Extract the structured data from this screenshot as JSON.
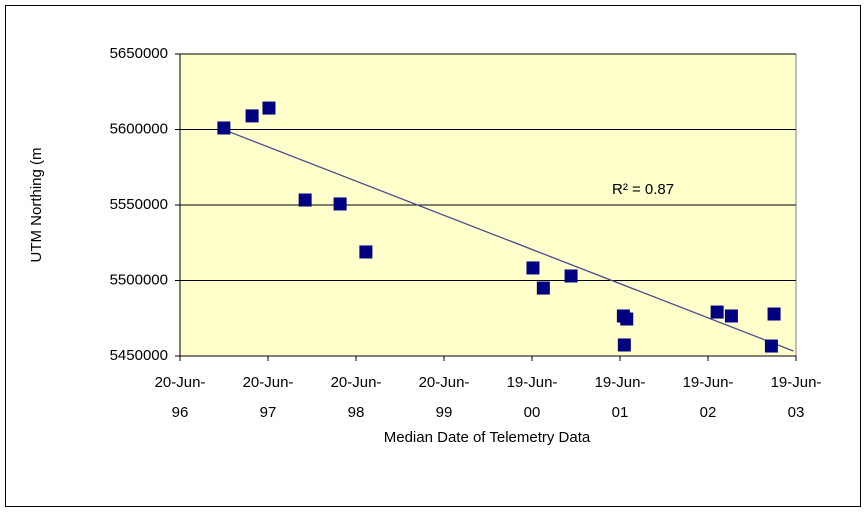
{
  "chart_data": {
    "type": "scatter",
    "x_label": "Median Date of Telemetry Data",
    "y_label": "UTM Northing (m",
    "annotation": "R² = 0.87",
    "marker_color": "#000080",
    "plot_background": "#ffffcc",
    "grid": "y",
    "x": [
      "1996-12-19",
      "1997-04-15",
      "1997-06-24",
      "1997-11-21",
      "1998-04-15",
      "1998-07-31",
      "2000-06-23",
      "2000-08-05",
      "2000-11-28",
      "2001-07-07",
      "2001-07-03",
      "2001-07-17",
      "2002-07-27",
      "2002-09-24",
      "2003-03-09",
      "2003-03-20"
    ],
    "values": [
      5601000,
      5609000,
      5614200,
      5553300,
      5550700,
      5518900,
      5508300,
      5495000,
      5503000,
      5457300,
      5476500,
      5474500,
      5479100,
      5476500,
      5456600,
      5477800
    ],
    "trendline": {
      "color": "#4b4b8f",
      "x": [
        "1996-12-12",
        "2003-06-08"
      ],
      "values": [
        5600300,
        5453300
      ]
    },
    "xlim": [
      "1996-06-20",
      "2003-06-19"
    ],
    "xticks": [
      {
        "value": "1996-06-20",
        "label": "20-Jun-96"
      },
      {
        "value": "1997-06-20",
        "label": "20-Jun-97"
      },
      {
        "value": "1998-06-20",
        "label": "20-Jun-98"
      },
      {
        "value": "1999-06-20",
        "label": "20-Jun-99"
      },
      {
        "value": "2000-06-19",
        "label": "19-Jun-00"
      },
      {
        "value": "2001-06-19",
        "label": "19-Jun-01"
      },
      {
        "value": "2002-06-19",
        "label": "19-Jun-02"
      },
      {
        "value": "2003-06-19",
        "label": "19-Jun-03"
      }
    ],
    "ylim": [
      5450000,
      5650000
    ],
    "yticks": [
      5450000,
      5500000,
      5550000,
      5600000,
      5650000
    ]
  }
}
